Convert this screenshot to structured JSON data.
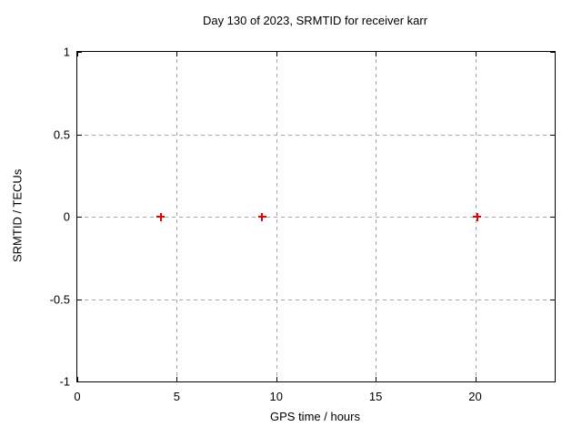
{
  "title": "Day 130 of 2023, SRMTID for receiver karr",
  "colors": {
    "background": "#ffffff",
    "border": "#000000",
    "grid": "#a6a6a6",
    "text": "#000000",
    "marker": "#e60000"
  },
  "chart_data": {
    "type": "scatter",
    "title": "Day 130 of 2023, SRMTID for receiver karr",
    "xlabel": "GPS time / hours",
    "ylabel": "SRMTID / TECUs",
    "xlim": [
      0,
      24
    ],
    "ylim": [
      -1,
      1
    ],
    "grid": true,
    "legend": "none",
    "marker": "plus",
    "marker_color": "#e60000",
    "xticks": [
      {
        "value": 0,
        "label": "0"
      },
      {
        "value": 5,
        "label": "5"
      },
      {
        "value": 10,
        "label": "10"
      },
      {
        "value": 15,
        "label": "15"
      },
      {
        "value": 20,
        "label": "20"
      }
    ],
    "yticks": [
      {
        "value": 1,
        "label": "1"
      },
      {
        "value": 0.5,
        "label": "0.5"
      },
      {
        "value": 0,
        "label": "0"
      },
      {
        "value": -0.5,
        "label": "-0.5"
      },
      {
        "value": -1,
        "label": "-1"
      }
    ],
    "grid_x": [
      5,
      10,
      15,
      20
    ],
    "grid_y": [
      0.5,
      0,
      -0.5
    ],
    "series": [
      {
        "name": "SRMTID",
        "points": [
          {
            "x": 4.2,
            "y": 0
          },
          {
            "x": 9.3,
            "y": 0
          },
          {
            "x": 20.1,
            "y": 0
          }
        ]
      }
    ]
  }
}
